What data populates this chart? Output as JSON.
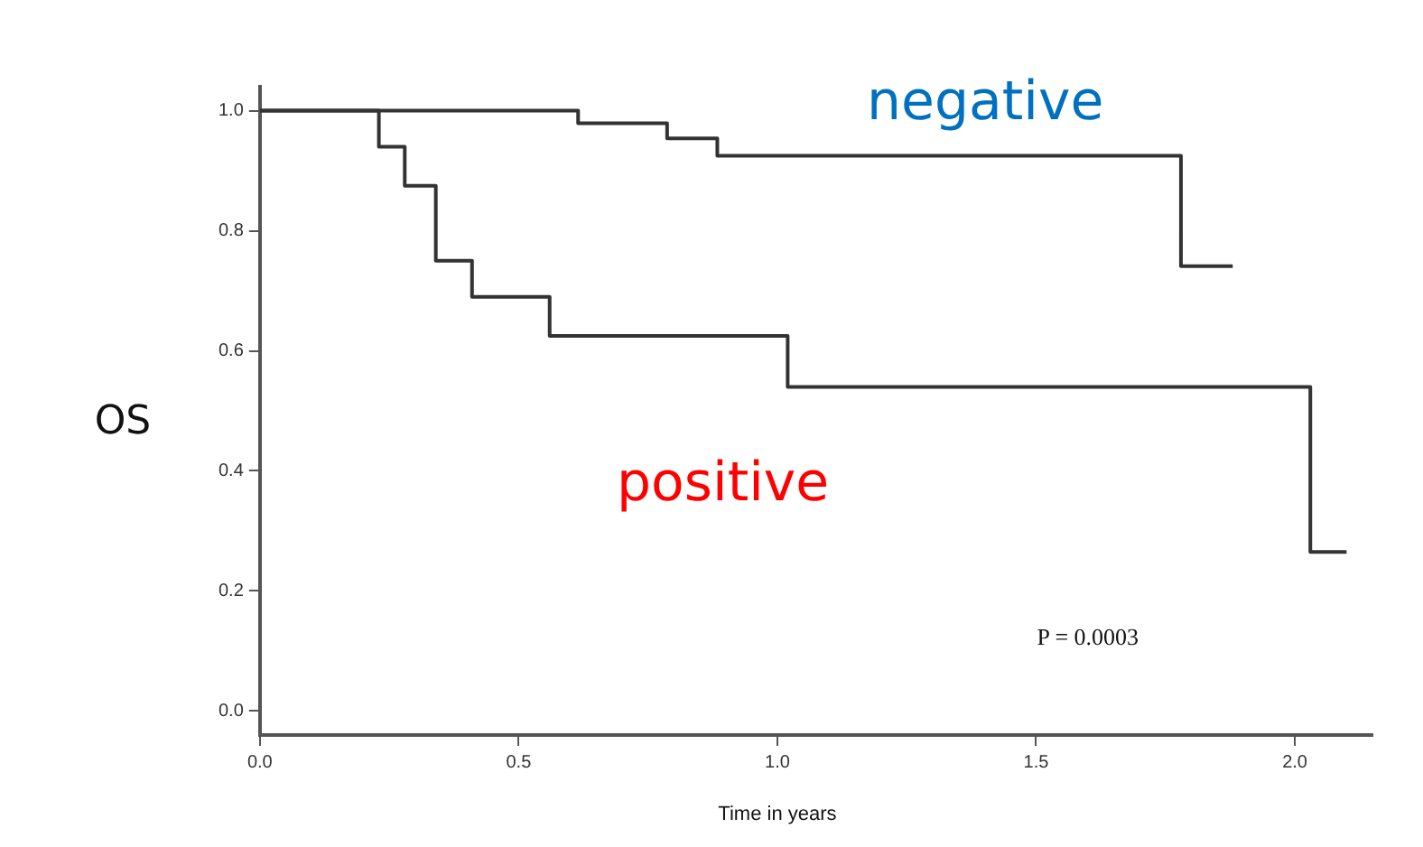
{
  "chart_data": {
    "type": "step",
    "xlabel": "Time in years",
    "ylabel": "OS",
    "annotations": [
      "P = 0.0003"
    ],
    "xlim": [
      0,
      2.15
    ],
    "xticks": [
      {
        "value": 0,
        "label": "0.0"
      },
      0.5,
      {
        "value": 1,
        "label": "1.0"
      },
      1.5,
      {
        "value": 2,
        "label": "2.0"
      }
    ],
    "ylim": [
      -0.04,
      1.04
    ],
    "yticks": [
      {
        "value": 0,
        "label": "0.0"
      },
      0.2,
      0.4,
      0.6,
      0.8,
      {
        "value": 1,
        "label": "1.0"
      }
    ],
    "grid": false,
    "legend": false,
    "marker": "none",
    "line_style": "solid",
    "series": [
      {
        "name": "negative",
        "color": "#333333",
        "x": [
          0,
          0.615,
          0.787,
          0.884,
          1.78,
          1.88
        ],
        "values": [
          1,
          0.979,
          0.954,
          0.925,
          0.741,
          0.741
        ]
      },
      {
        "name": "positive",
        "color": "#333333",
        "x": [
          0,
          0.23,
          0.28,
          0.34,
          0.41,
          0.56,
          1.02,
          2.03,
          2.1
        ],
        "values": [
          1,
          0.94,
          0.875,
          0.75,
          0.69,
          0.625,
          0.54,
          0.265,
          0.265
        ]
      }
    ]
  }
}
